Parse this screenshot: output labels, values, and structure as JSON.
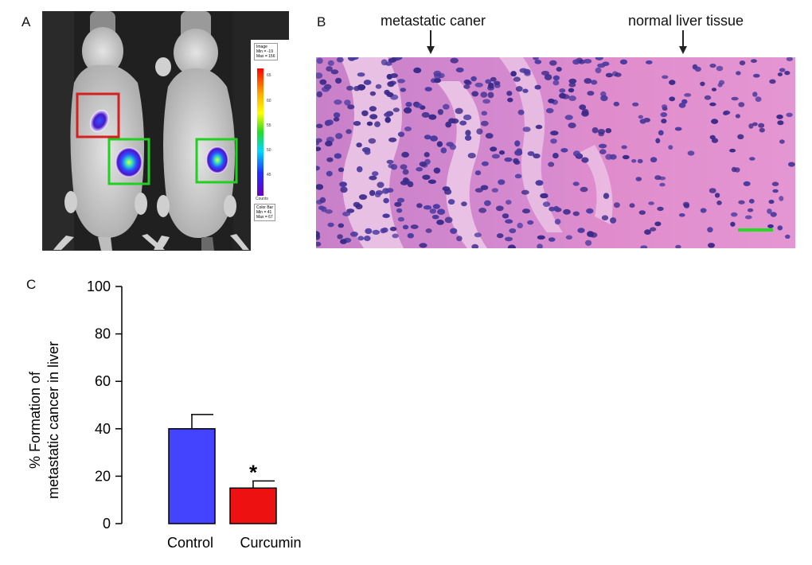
{
  "panels": {
    "a_label": "A",
    "b_label": "B",
    "c_label": "C"
  },
  "panel_a": {
    "legend_image": [
      "Image",
      "Min = -19",
      "Max = 156"
    ],
    "legend_colorbar": [
      "Color Bar",
      "Min = 41",
      "Max = 67"
    ],
    "colorbar_ticks": [
      "65",
      "60",
      "55",
      "50",
      "45"
    ],
    "colorbar_unit": "Counts",
    "box_colors": {
      "left_upper": "#d42020",
      "left_lower": "#22d022",
      "right": "#22d022"
    }
  },
  "panel_b": {
    "annotation_left": "metastatic caner",
    "annotation_right": "normal liver tissue",
    "scale_bar_color": "#22dd22"
  },
  "chart_data": {
    "type": "bar",
    "categories": [
      "Control",
      "Curcumin"
    ],
    "values": [
      40,
      15
    ],
    "errors": [
      6,
      3
    ],
    "colors": [
      "#4444ff",
      "#ee1111"
    ],
    "significance": [
      "",
      "*"
    ],
    "ylabel_line1": "% Formation of",
    "ylabel_line2": "metastatic cancer in liver",
    "ylim": [
      0,
      100
    ],
    "yticks": [
      "0",
      "20",
      "40",
      "60",
      "80",
      "100"
    ]
  }
}
